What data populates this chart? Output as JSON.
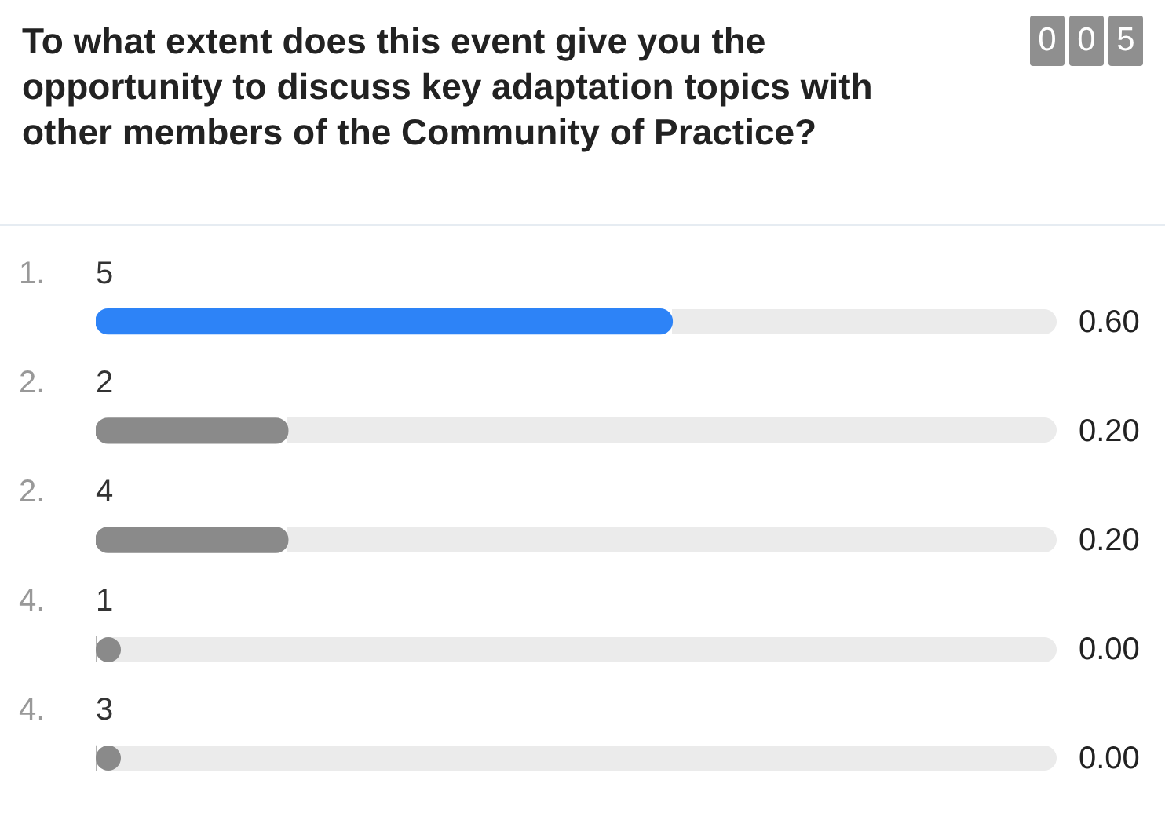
{
  "chart_data": {
    "type": "bar",
    "orientation": "horizontal",
    "title": "To what extent does this event give you the opportunity to discuss key adaptation topics with other members of the Community of Practice?",
    "categories": [
      "5",
      "2",
      "4",
      "1",
      "3"
    ],
    "values": [
      0.6,
      0.2,
      0.2,
      0,
      0
    ],
    "colors": [
      "#2d83f7",
      "#8a8a8a",
      "#8a8a8a",
      "#8a8a8a",
      "#8a8a8a"
    ],
    "value_labels": [
      "0.60",
      "0.20",
      "0.20",
      "0.00",
      "0.00"
    ],
    "xlim": [
      0,
      1
    ],
    "tick_labels": false,
    "legend": false,
    "annotations": [
      "0 0 5",
      "1.",
      "2.",
      "2.",
      "4.",
      "4."
    ]
  }
}
